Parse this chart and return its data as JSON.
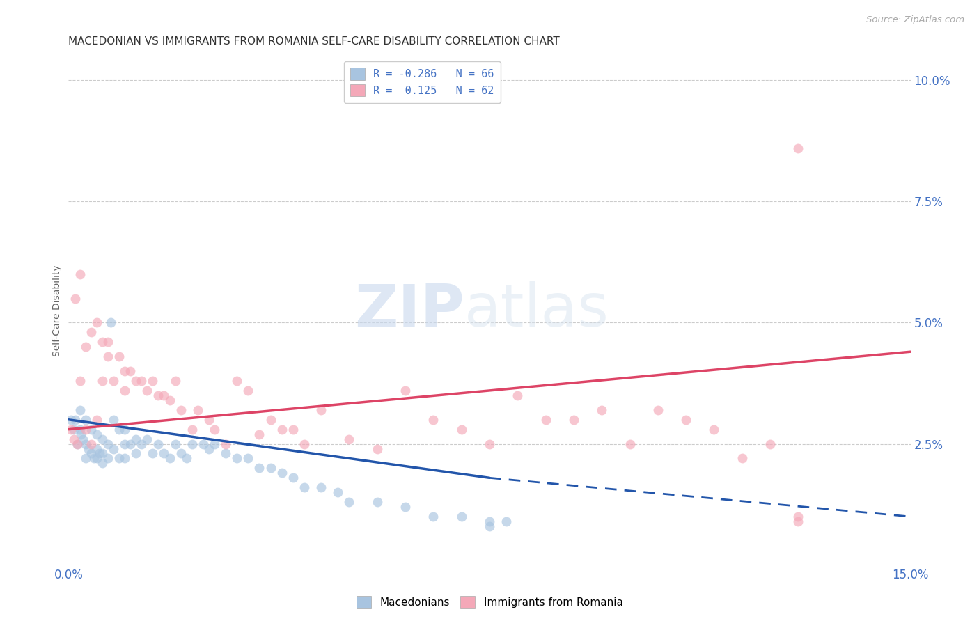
{
  "title": "MACEDONIAN VS IMMIGRANTS FROM ROMANIA SELF-CARE DISABILITY CORRELATION CHART",
  "source": "Source: ZipAtlas.com",
  "ylabel_label": "Self-Care Disability",
  "xlim": [
    0.0,
    0.15
  ],
  "ylim": [
    0.0,
    0.105
  ],
  "xtick_positions": [
    0.0,
    0.03,
    0.06,
    0.09,
    0.12,
    0.15
  ],
  "xtick_labels": [
    "0.0%",
    "",
    "",
    "",
    "",
    "15.0%"
  ],
  "ytick_positions": [
    0.0,
    0.025,
    0.05,
    0.075,
    0.1
  ],
  "ytick_labels": [
    "",
    "2.5%",
    "5.0%",
    "7.5%",
    "10.0%"
  ],
  "macedonian_R": -0.286,
  "macedonian_N": 66,
  "romania_R": 0.125,
  "romania_N": 62,
  "macedonian_color": "#a8c4e0",
  "romania_color": "#f4a8b8",
  "macedonian_line_color": "#2255aa",
  "romania_line_color": "#dd4466",
  "mac_line_solid_end": 0.075,
  "mac_line_y0": 0.03,
  "mac_line_y_end_solid": 0.018,
  "mac_line_y_end_dashed": 0.01,
  "rom_line_y0": 0.028,
  "rom_line_y_end": 0.044,
  "scatter_marker_size": 100,
  "scatter_alpha": 0.65,
  "background_color": "#ffffff",
  "grid_color": "#cccccc",
  "mac_x": [
    0.0005,
    0.001,
    0.0012,
    0.0015,
    0.002,
    0.002,
    0.0022,
    0.0025,
    0.003,
    0.003,
    0.003,
    0.0035,
    0.004,
    0.004,
    0.0045,
    0.005,
    0.005,
    0.005,
    0.0055,
    0.006,
    0.006,
    0.006,
    0.007,
    0.007,
    0.0075,
    0.008,
    0.008,
    0.009,
    0.009,
    0.01,
    0.01,
    0.01,
    0.011,
    0.012,
    0.012,
    0.013,
    0.014,
    0.015,
    0.016,
    0.017,
    0.018,
    0.019,
    0.02,
    0.021,
    0.022,
    0.024,
    0.025,
    0.026,
    0.028,
    0.03,
    0.032,
    0.034,
    0.036,
    0.038,
    0.04,
    0.042,
    0.045,
    0.048,
    0.05,
    0.055,
    0.06,
    0.065,
    0.07,
    0.075,
    0.078,
    0.075
  ],
  "mac_y": [
    0.03,
    0.028,
    0.03,
    0.025,
    0.032,
    0.028,
    0.027,
    0.026,
    0.03,
    0.025,
    0.022,
    0.024,
    0.028,
    0.023,
    0.022,
    0.027,
    0.024,
    0.022,
    0.023,
    0.026,
    0.023,
    0.021,
    0.025,
    0.022,
    0.05,
    0.03,
    0.024,
    0.028,
    0.022,
    0.028,
    0.025,
    0.022,
    0.025,
    0.026,
    0.023,
    0.025,
    0.026,
    0.023,
    0.025,
    0.023,
    0.022,
    0.025,
    0.023,
    0.022,
    0.025,
    0.025,
    0.024,
    0.025,
    0.023,
    0.022,
    0.022,
    0.02,
    0.02,
    0.019,
    0.018,
    0.016,
    0.016,
    0.015,
    0.013,
    0.013,
    0.012,
    0.01,
    0.01,
    0.009,
    0.009,
    0.008
  ],
  "rom_x": [
    0.0005,
    0.001,
    0.0012,
    0.0015,
    0.002,
    0.002,
    0.003,
    0.003,
    0.004,
    0.004,
    0.005,
    0.005,
    0.006,
    0.006,
    0.007,
    0.007,
    0.008,
    0.009,
    0.01,
    0.01,
    0.011,
    0.012,
    0.013,
    0.014,
    0.015,
    0.016,
    0.017,
    0.018,
    0.019,
    0.02,
    0.022,
    0.023,
    0.025,
    0.026,
    0.028,
    0.03,
    0.032,
    0.034,
    0.036,
    0.038,
    0.04,
    0.042,
    0.045,
    0.05,
    0.055,
    0.06,
    0.065,
    0.07,
    0.075,
    0.08,
    0.085,
    0.09,
    0.095,
    0.1,
    0.105,
    0.11,
    0.115,
    0.12,
    0.125,
    0.13,
    0.13,
    0.13
  ],
  "rom_y": [
    0.028,
    0.026,
    0.055,
    0.025,
    0.06,
    0.038,
    0.045,
    0.028,
    0.048,
    0.025,
    0.05,
    0.03,
    0.046,
    0.038,
    0.043,
    0.046,
    0.038,
    0.043,
    0.04,
    0.036,
    0.04,
    0.038,
    0.038,
    0.036,
    0.038,
    0.035,
    0.035,
    0.034,
    0.038,
    0.032,
    0.028,
    0.032,
    0.03,
    0.028,
    0.025,
    0.038,
    0.036,
    0.027,
    0.03,
    0.028,
    0.028,
    0.025,
    0.032,
    0.026,
    0.024,
    0.036,
    0.03,
    0.028,
    0.025,
    0.035,
    0.03,
    0.03,
    0.032,
    0.025,
    0.032,
    0.03,
    0.028,
    0.022,
    0.025,
    0.086,
    0.01,
    0.009
  ]
}
